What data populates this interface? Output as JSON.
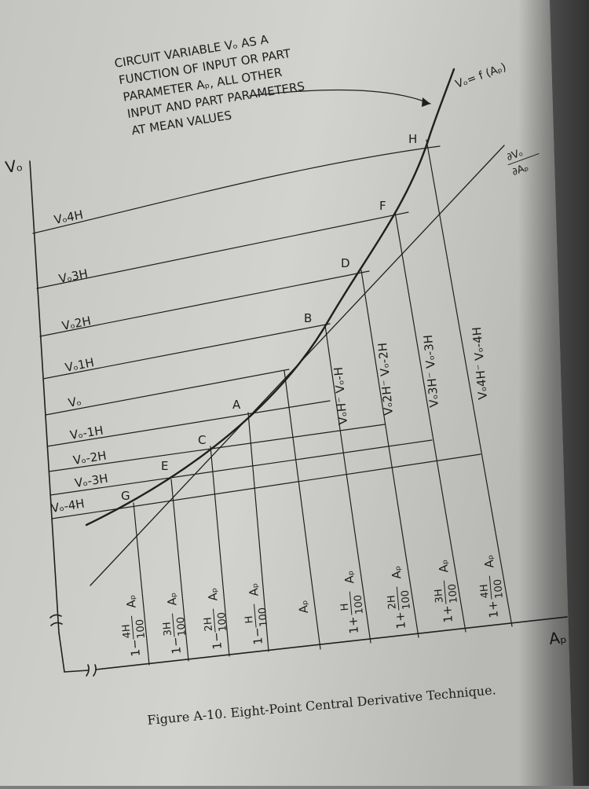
{
  "caption": "Figure A-10.  Eight-Point Central Derivative Technique.",
  "callout": {
    "line1": "CIRCUIT VARIABLE Vₒ AS A",
    "line2": "FUNCTION OF INPUT OR PART",
    "line3": "PARAMETER Aₚ, ALL OTHER",
    "line4": "INPUT AND PART PARAMETERS",
    "line5": "AT MEAN VALUES"
  },
  "axes": {
    "y_label": "Vₒ",
    "x_label": "Aₚ"
  },
  "curve_label": "Vₒ= f (Aₚ)",
  "slope_label": {
    "num": "∂Vₒ",
    "den": "∂Aₚ"
  },
  "levels": [
    {
      "label": "Vₒ4H"
    },
    {
      "label": "Vₒ3H"
    },
    {
      "label": "Vₒ2H"
    },
    {
      "label": "Vₒ1H"
    },
    {
      "label": "Vₒ"
    },
    {
      "label": "Vₒ-1H"
    },
    {
      "label": "Vₒ-2H"
    },
    {
      "label": "Vₒ-3H"
    },
    {
      "label": "Vₒ-4H"
    }
  ],
  "points": [
    "H",
    "F",
    "D",
    "B",
    "A",
    "C",
    "E",
    "G"
  ],
  "differences": [
    "VₒH⁻ Vₒ-H",
    "Vₒ2H⁻ Vₒ-2H",
    "Vₒ3H⁻ Vₒ-3H",
    "Vₒ4H⁻ Vₒ-4H"
  ],
  "x_ticks": [
    {
      "prefix": "1−",
      "num": "4H",
      "den": "100",
      "suffix": "Aₚ"
    },
    {
      "prefix": "1−",
      "num": "3H",
      "den": "100",
      "suffix": "Aₚ"
    },
    {
      "prefix": "1−",
      "num": "2H",
      "den": "100",
      "suffix": "Aₚ"
    },
    {
      "prefix": "1−",
      "num": "H",
      "den": "100",
      "suffix": "Aₚ"
    },
    {
      "prefix": "",
      "num": "",
      "den": "",
      "suffix": "Aₚ"
    },
    {
      "prefix": "1+",
      "num": "H",
      "den": "100",
      "suffix": "Aₚ"
    },
    {
      "prefix": "1+",
      "num": "2H",
      "den": "100",
      "suffix": "Aₚ"
    },
    {
      "prefix": "1+",
      "num": "3H",
      "den": "100",
      "suffix": "Aₚ"
    },
    {
      "prefix": "1+",
      "num": "4H",
      "den": "100",
      "suffix": "Aₚ"
    }
  ]
}
